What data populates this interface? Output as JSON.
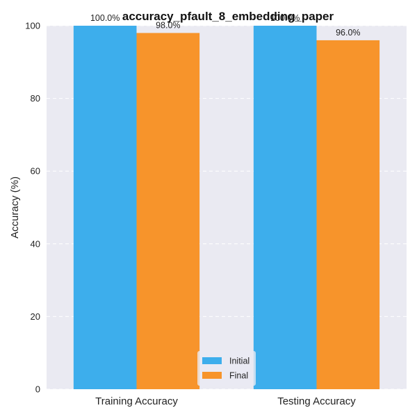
{
  "chart_data": {
    "type": "bar",
    "title": "accuracy_pfault_8_embedding_paper",
    "xlabel": "",
    "ylabel": "Accuracy (%)",
    "categories": [
      "Training Accuracy",
      "Testing Accuracy"
    ],
    "series": [
      {
        "name": "Initial",
        "values": [
          100.0,
          100.0
        ],
        "labels": [
          "100.0%",
          "100.0%"
        ],
        "color": "#3daeec"
      },
      {
        "name": "Final",
        "values": [
          98.0,
          96.0
        ],
        "labels": [
          "98.0%",
          "96.0%"
        ],
        "color": "#f7942b"
      }
    ],
    "ylim": [
      0,
      100
    ],
    "yticks": [
      0,
      20,
      40,
      60,
      80,
      100
    ],
    "grid": true,
    "legend_position": "lower-center",
    "background_color": "#eaeaf2",
    "grid_color": "#ffffff"
  }
}
